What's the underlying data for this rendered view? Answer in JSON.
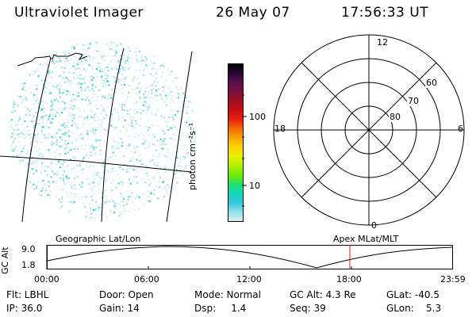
{
  "header": {
    "instrument": "Ultraviolet Imager",
    "date": "26 May 07",
    "time": "17:56:33 UT"
  },
  "colorbar": {
    "unit_label": "photon cm⁻²s⁻¹",
    "ticks": [
      "100",
      "10"
    ],
    "colors": [
      "#000000",
      "#2a0a3a",
      "#5a0f4a",
      "#7a1040",
      "#a01020",
      "#c81010",
      "#e82010",
      "#f56a00",
      "#f8a800",
      "#f8d400",
      "#e8f000",
      "#b0f000",
      "#70ee00",
      "#20e070",
      "#10d8b8",
      "#30c8e0",
      "#90e0e8",
      "#d8f0f0"
    ]
  },
  "polar_plot": {
    "mlt_labels": [
      "12",
      "18",
      "6",
      "0"
    ],
    "lat_labels": [
      "60",
      "70",
      "80"
    ]
  },
  "timeline": {
    "left_label": "Geographic Lat/Lon",
    "right_label": "Apex MLat/MLT",
    "y_axis_title": "GC Alt",
    "y_ticks": [
      "9.0",
      "1.8"
    ],
    "x_ticks": [
      "00:00",
      "06:00",
      "12:00",
      "18:00",
      "23:59"
    ],
    "marker_time": "17:56",
    "marker_color": "#d02020"
  },
  "info": {
    "flt": "Flt: LBHL",
    "door": "Door: Open",
    "mode": "Mode: Normal",
    "gc_alt": "GC Alt: 4.3 Re",
    "glat": "GLat: -40.5",
    "ip": "IP: 36.0",
    "gain": "Gain: 14",
    "dsp": "Dsp:     1.4",
    "seq": "Seq: 39",
    "glon": "GLon:    5.3"
  },
  "image_colors": {
    "speckle_light": "#cfeeee",
    "speckle_mid": "#8fdce0",
    "speckle_strong": "#20d4d0"
  }
}
